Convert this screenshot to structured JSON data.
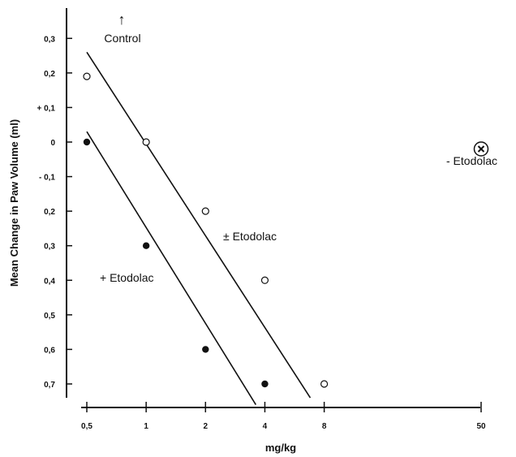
{
  "chart_data": {
    "type": "scatter",
    "title": "",
    "xlabel": "mg/kg",
    "ylabel": "Mean Change in Paw Volume (ml)",
    "x_scale": "log",
    "x_ticks": [
      {
        "value": 0.5,
        "label": "0,5"
      },
      {
        "value": 1,
        "label": "1"
      },
      {
        "value": 2,
        "label": "2"
      },
      {
        "value": 4,
        "label": "4"
      },
      {
        "value": 8,
        "label": "8"
      },
      {
        "value": 50,
        "label": "50"
      }
    ],
    "y_ticks": [
      {
        "value": 0.3,
        "label": "0,3"
      },
      {
        "value": 0.2,
        "label": "0,2"
      },
      {
        "value": 0.1,
        "label": "+ 0,1"
      },
      {
        "value": 0,
        "label": "0"
      },
      {
        "value": -0.1,
        "label": "- 0,1"
      },
      {
        "value": -0.2,
        "label": "0,2"
      },
      {
        "value": -0.3,
        "label": "0,3"
      },
      {
        "value": -0.4,
        "label": "0,4"
      },
      {
        "value": -0.5,
        "label": "0,5"
      },
      {
        "value": -0.6,
        "label": "0,6"
      },
      {
        "value": -0.7,
        "label": "0,7"
      }
    ],
    "ylim": [
      -0.75,
      0.35
    ],
    "xlim": [
      0.5,
      50
    ],
    "grid": false,
    "series": [
      {
        "name": "± Etodolac",
        "marker": "open-circle",
        "x": [
          0.5,
          1,
          2,
          4,
          8
        ],
        "y": [
          0.19,
          0.0,
          -0.2,
          -0.4,
          -0.7
        ],
        "fit_line": {
          "x": [
            0.5,
            6.8
          ],
          "y": [
            0.26,
            -0.74
          ]
        }
      },
      {
        "name": "+ Etodolac",
        "marker": "filled-circle",
        "x": [
          0.5,
          1,
          2,
          4
        ],
        "y": [
          0.0,
          -0.3,
          -0.6,
          -0.7
        ],
        "fit_line": {
          "x": [
            0.5,
            3.6
          ],
          "y": [
            0.03,
            -0.76
          ]
        }
      },
      {
        "name": "- Etodolac",
        "marker": "circled-x",
        "x": [
          50
        ],
        "y": [
          -0.02
        ]
      }
    ],
    "annotations": {
      "control_label": "Control",
      "control_arrow": "↑"
    }
  }
}
